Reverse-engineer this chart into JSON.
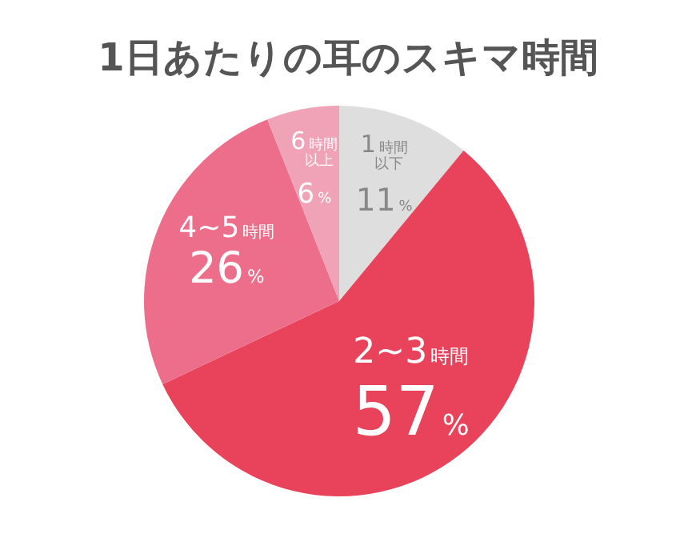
{
  "chart_data": {
    "type": "pie",
    "title": "1日あたりの耳のスキマ時間",
    "categories": [
      "1時間以下",
      "2~3時間",
      "4~5時間",
      "6時間以上"
    ],
    "values": [
      11,
      57,
      26,
      6
    ],
    "colors": [
      "#dedede",
      "#e8435a",
      "#ec6e8a",
      "#f0a3b6"
    ],
    "value_labels": [
      "11%",
      "57%",
      "26%",
      "6%"
    ]
  }
}
